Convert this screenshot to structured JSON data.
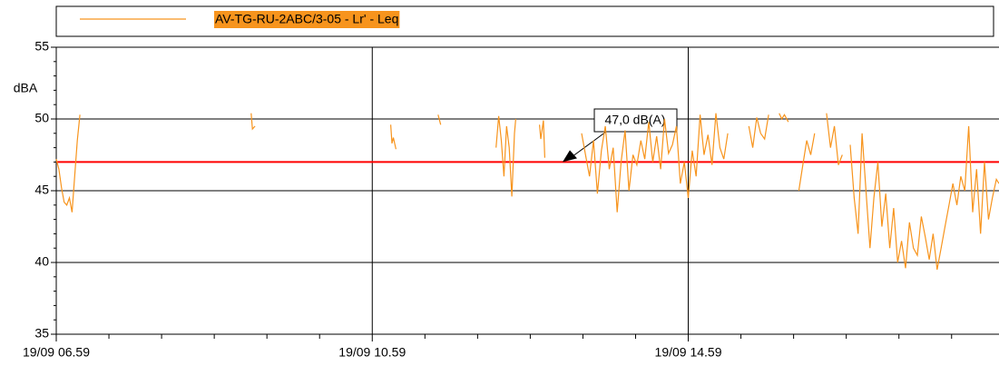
{
  "chart_data": {
    "type": "line",
    "y_label": "dBA",
    "legend": "top",
    "grid": true,
    "xlim": [
      419,
      1135
    ],
    "xticks": [
      {
        "value": 419,
        "label": "19/09 06.59"
      },
      {
        "value": 659,
        "label": "19/09 10.59"
      },
      {
        "value": 899,
        "label": "19/09 14.59"
      }
    ],
    "xminor_ticks": [
      459,
      499,
      539,
      579,
      619,
      699,
      739,
      779,
      819,
      859,
      939,
      979,
      1019,
      1059,
      1099
    ],
    "ylim": [
      35,
      55
    ],
    "yticks": [
      35,
      40,
      45,
      50,
      55
    ],
    "yminor_ticks": [
      36,
      37,
      38,
      39,
      41,
      42,
      43,
      44,
      46,
      47,
      48,
      49,
      51,
      52,
      53,
      54
    ],
    "reference_lines": [
      {
        "value": 47,
        "color": "#ff0000",
        "label": "47,0 dB(A)"
      }
    ],
    "x": [
      419,
      421,
      423,
      425,
      427,
      429,
      431,
      433,
      435,
      437,
      438,
      567,
      568,
      570,
      571,
      673,
      674,
      675,
      677,
      678,
      709,
      711,
      712,
      753,
      755,
      757,
      759,
      761,
      763,
      765,
      767,
      768,
      769,
      786,
      787,
      789,
      790,
      791,
      818,
      821,
      824,
      827,
      830,
      833,
      836,
      839,
      842,
      845,
      848,
      851,
      854,
      857,
      860,
      863,
      866,
      869,
      872,
      875,
      878,
      881,
      884,
      887,
      890,
      893,
      896,
      899,
      902,
      905,
      908,
      911,
      914,
      917,
      920,
      923,
      926,
      929,
      930,
      945,
      948,
      951,
      954,
      957,
      960,
      961,
      968,
      970,
      972,
      975,
      976,
      983,
      986,
      989,
      992,
      995,
      996,
      1004,
      1007,
      1010,
      1013,
      1016,
      1017,
      1022,
      1025,
      1028,
      1031,
      1034,
      1037,
      1040,
      1043,
      1046,
      1049,
      1052,
      1055,
      1058,
      1061,
      1064,
      1067,
      1070,
      1073,
      1076,
      1079,
      1082,
      1085,
      1088,
      1091,
      1094,
      1097,
      1100,
      1103,
      1106,
      1109,
      1112,
      1115,
      1118,
      1121,
      1124,
      1127,
      1130,
      1133,
      1135
    ],
    "series": [
      {
        "name": "AV-TG-RU-2ABC/3-05 - Lr' - Leq",
        "color": "#f7941d",
        "values": [
          47.2,
          46.5,
          45.2,
          44.2,
          44.0,
          44.5,
          43.5,
          46.0,
          48.5,
          50.3,
          null,
          50.4,
          49.3,
          49.5,
          null,
          49.6,
          48.3,
          48.7,
          47.9,
          null,
          50.3,
          49.6,
          null,
          48.0,
          50.2,
          48.5,
          46.0,
          49.5,
          48.0,
          44.6,
          49.0,
          50.0,
          null,
          49.6,
          48.6,
          49.9,
          47.3,
          null,
          49.0,
          47.5,
          46.0,
          48.5,
          44.8,
          47.8,
          49.5,
          46.5,
          48.0,
          43.5,
          47.0,
          49.2,
          45.0,
          47.5,
          46.8,
          48.5,
          47.2,
          49.8,
          47.0,
          48.8,
          46.5,
          50.0,
          47.6,
          48.2,
          49.5,
          45.5,
          47.0,
          44.5,
          47.8,
          46.0,
          50.3,
          47.5,
          48.9,
          46.8,
          50.4,
          48.0,
          47.2,
          49.0,
          null,
          49.5,
          48.0,
          50.1,
          49.0,
          48.6,
          50.3,
          null,
          50.4,
          50.0,
          50.3,
          49.8,
          null,
          45.0,
          46.8,
          48.5,
          47.5,
          49.0,
          null,
          50.4,
          48.0,
          49.5,
          46.8,
          47.5,
          null,
          48.2,
          44.5,
          42.0,
          49.0,
          45.0,
          41.0,
          44.5,
          47.0,
          42.5,
          44.8,
          41.0,
          43.8,
          40.0,
          41.5,
          39.6,
          42.8,
          41.0,
          40.5,
          43.2,
          41.8,
          40.2,
          42.0,
          39.5,
          41.0,
          42.5,
          44.0,
          45.5,
          44.0,
          46.0,
          45.0,
          49.5,
          43.5,
          46.5,
          42.0,
          47.0,
          43.0,
          44.5,
          45.8,
          45.5
        ]
      }
    ]
  }
}
